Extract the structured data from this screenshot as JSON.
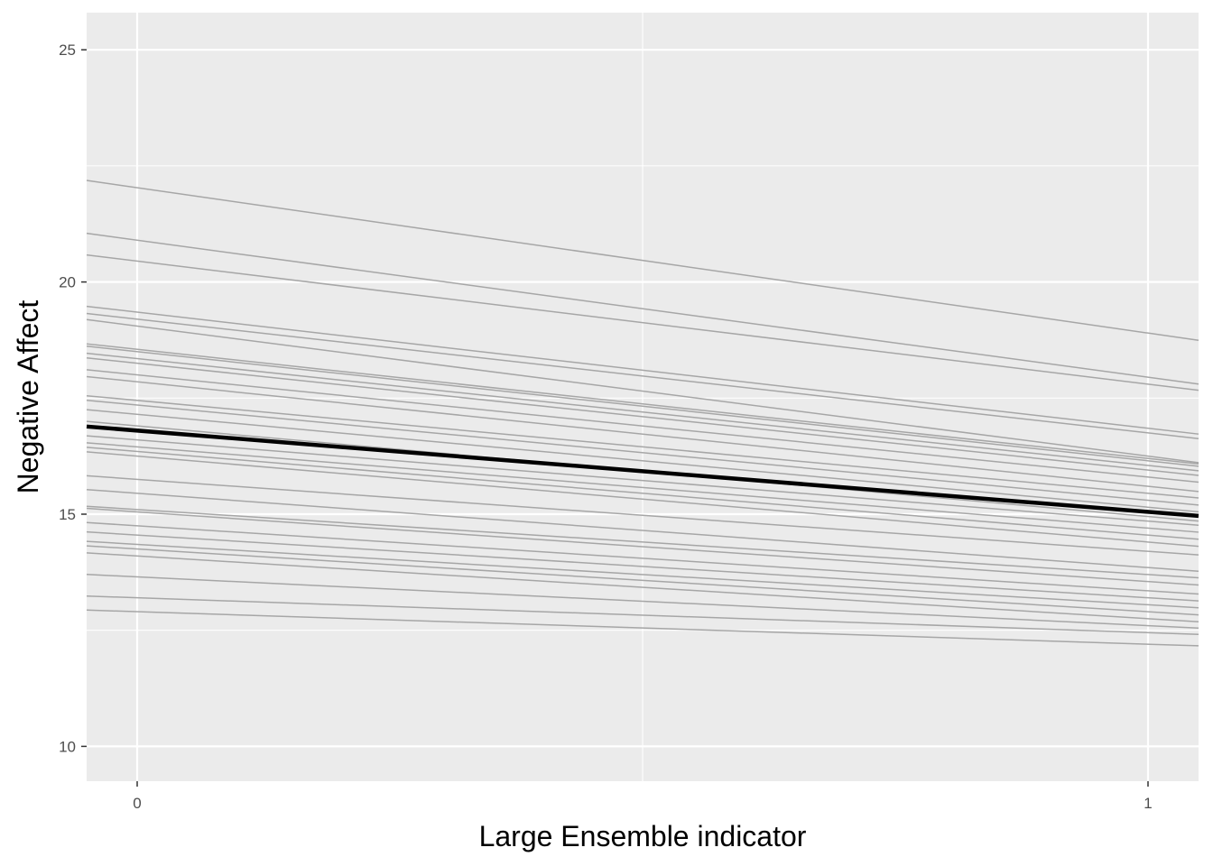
{
  "chart_data": {
    "type": "line",
    "title": "",
    "xlabel": "Large Ensemble indicator",
    "ylabel": "Negative Affect",
    "xlim": [
      -0.05,
      1.05
    ],
    "ylim": [
      9.25,
      25.8
    ],
    "x_ticks": [
      0,
      1
    ],
    "x_tick_labels": [
      "0",
      "1"
    ],
    "x_minor_ticks": [
      0.5
    ],
    "y_ticks": [
      10,
      15,
      20,
      25
    ],
    "y_tick_labels": [
      "10",
      "15",
      "20",
      "25"
    ],
    "y_minor_ticks": [
      12.5,
      17.5,
      22.5
    ],
    "grid": true,
    "legend": "none",
    "colors": {
      "panel_background": "#ebebeb",
      "grid_line": "#ffffff",
      "group_line": "#a6a6a6",
      "average_line": "#000000",
      "tick_label": "#4d4d4d",
      "tick_mark": "#333333"
    },
    "average_line": {
      "x": [
        0,
        1
      ],
      "y": [
        16.8,
        15.05
      ]
    },
    "group_lines": [
      {
        "x": [
          0,
          1
        ],
        "y": [
          22.03,
          18.9
        ]
      },
      {
        "x": [
          0,
          1
        ],
        "y": [
          20.9,
          17.95
        ]
      },
      {
        "x": [
          0,
          1
        ],
        "y": [
          20.45,
          17.8
        ]
      },
      {
        "x": [
          0,
          1
        ],
        "y": [
          19.35,
          16.85
        ]
      },
      {
        "x": [
          0,
          1
        ],
        "y": [
          19.2,
          16.75
        ]
      },
      {
        "x": [
          0,
          1
        ],
        "y": [
          19.05,
          16.25
        ]
      },
      {
        "x": [
          0,
          1
        ],
        "y": [
          18.55,
          16.2
        ]
      },
      {
        "x": [
          0,
          1
        ],
        "y": [
          18.5,
          16.15
        ]
      },
      {
        "x": [
          0,
          1
        ],
        "y": [
          18.35,
          16.05
        ]
      },
      {
        "x": [
          0,
          1
        ],
        "y": [
          18.25,
          15.95
        ]
      },
      {
        "x": [
          0,
          1
        ],
        "y": [
          18.0,
          15.8
        ]
      },
      {
        "x": [
          0,
          1
        ],
        "y": [
          17.85,
          15.6
        ]
      },
      {
        "x": [
          0,
          1
        ],
        "y": [
          17.45,
          15.45
        ]
      },
      {
        "x": [
          0,
          1
        ],
        "y": [
          17.35,
          15.3
        ]
      },
      {
        "x": [
          0,
          1
        ],
        "y": [
          17.15,
          15.15
        ]
      },
      {
        "x": [
          0,
          1
        ],
        "y": [
          16.9,
          14.95
        ]
      },
      {
        "x": [
          0,
          1
        ],
        "y": [
          16.6,
          14.85
        ]
      },
      {
        "x": [
          0,
          1
        ],
        "y": [
          16.45,
          14.7
        ]
      },
      {
        "x": [
          0,
          1
        ],
        "y": [
          16.35,
          14.55
        ]
      },
      {
        "x": [
          0,
          1
        ],
        "y": [
          16.25,
          14.4
        ]
      },
      {
        "x": [
          0,
          1
        ],
        "y": [
          15.75,
          14.2
        ]
      },
      {
        "x": [
          0,
          1
        ],
        "y": [
          15.45,
          13.85
        ]
      },
      {
        "x": [
          0,
          1
        ],
        "y": [
          15.1,
          13.7
        ]
      },
      {
        "x": [
          0,
          1
        ],
        "y": [
          15.05,
          13.55
        ]
      },
      {
        "x": [
          0,
          1
        ],
        "y": [
          14.75,
          13.35
        ]
      },
      {
        "x": [
          0,
          1
        ],
        "y": [
          14.55,
          13.2
        ]
      },
      {
        "x": [
          0,
          1
        ],
        "y": [
          14.35,
          13.05
        ]
      },
      {
        "x": [
          0,
          1
        ],
        "y": [
          14.25,
          12.9
        ]
      },
      {
        "x": [
          0,
          1
        ],
        "y": [
          14.1,
          12.75
        ]
      },
      {
        "x": [
          0,
          1
        ],
        "y": [
          13.65,
          12.6
        ]
      },
      {
        "x": [
          0,
          1
        ],
        "y": [
          13.2,
          12.45
        ]
      },
      {
        "x": [
          0,
          1
        ],
        "y": [
          12.9,
          12.2
        ]
      }
    ]
  }
}
